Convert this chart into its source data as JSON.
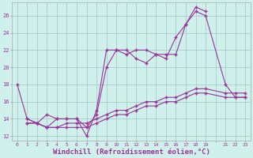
{
  "background_color": "#cff0eb",
  "grid_color": "#aacccc",
  "line_color": "#993399",
  "xlabel": "Windchill (Refroidissement éolien,°C)",
  "xlabel_fontsize": 6.5,
  "yticks": [
    12,
    14,
    16,
    18,
    20,
    22,
    24,
    26
  ],
  "ylim": [
    11.5,
    27.5
  ],
  "xlim": [
    -0.5,
    23.5
  ],
  "xtick_labels": [
    "0",
    "1",
    "2",
    "3",
    "4",
    "5",
    "6",
    "7",
    "8",
    "9",
    "10",
    "11",
    "12",
    "13",
    "14",
    "15",
    "16",
    "17",
    "18",
    "19",
    "",
    "21",
    "22",
    "23"
  ],
  "series": [
    {
      "x": [
        0,
        1,
        2,
        3,
        4,
        5,
        6,
        7,
        8,
        9,
        10,
        11,
        12,
        13,
        14,
        15,
        16,
        17,
        18,
        19
      ],
      "y": [
        18,
        14,
        13.5,
        13.0,
        14.0,
        14.0,
        14.0,
        12.0,
        15.0,
        22.0,
        22.0,
        22.0,
        21.0,
        20.5,
        21.5,
        21.0,
        23.5,
        25.0,
        27.0,
        26.5
      ]
    },
    {
      "x": [
        1,
        2,
        3,
        4,
        5,
        6,
        7,
        8,
        9,
        10,
        11,
        12,
        13,
        14,
        15,
        16,
        17,
        18,
        19,
        21,
        22,
        23
      ],
      "y": [
        13.5,
        13.5,
        14.5,
        14.0,
        14.0,
        14.0,
        13.0,
        14.5,
        20.0,
        22.0,
        21.5,
        22.0,
        22.0,
        21.5,
        21.5,
        21.5,
        25.0,
        26.5,
        26.0,
        18.0,
        16.5,
        16.5
      ]
    },
    {
      "x": [
        1,
        2,
        3,
        4,
        5,
        6,
        7,
        8,
        9,
        10,
        11,
        12,
        13,
        14,
        15,
        16,
        17,
        18,
        19,
        21,
        22,
        23
      ],
      "y": [
        13.5,
        13.5,
        13.0,
        13.0,
        13.0,
        13.0,
        13.0,
        13.5,
        14.0,
        14.5,
        14.5,
        15.0,
        15.5,
        15.5,
        16.0,
        16.0,
        16.5,
        17.0,
        17.0,
        16.5,
        16.5,
        16.5
      ]
    },
    {
      "x": [
        1,
        2,
        3,
        4,
        5,
        6,
        7,
        8,
        9,
        10,
        11,
        12,
        13,
        14,
        15,
        16,
        17,
        18,
        19,
        21,
        22,
        23
      ],
      "y": [
        14.0,
        13.5,
        13.0,
        13.0,
        13.5,
        13.5,
        13.5,
        14.0,
        14.5,
        15.0,
        15.0,
        15.5,
        16.0,
        16.0,
        16.5,
        16.5,
        17.0,
        17.5,
        17.5,
        17.0,
        17.0,
        17.0
      ]
    }
  ]
}
